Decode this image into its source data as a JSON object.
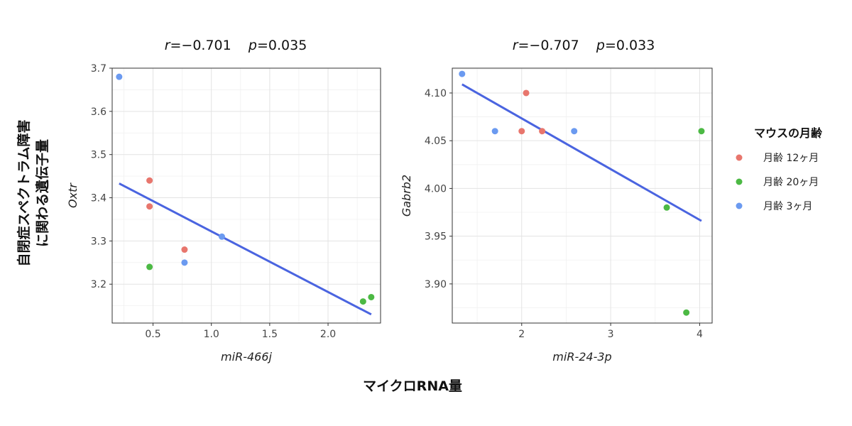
{
  "figure": {
    "y_label_lines": [
      "自閉症スペクトラム障害",
      "に関わる遺伝子量"
    ],
    "x_label": "マイクロRNA量"
  },
  "legend": {
    "title": "マウスの月齢",
    "entries": [
      {
        "label": "月齢 12ヶ月",
        "color": "#e8766d"
      },
      {
        "label": "月齢 20ヶ月",
        "color": "#4cb944"
      },
      {
        "label": "月齢 3ヶ月",
        "color": "#6b9af0"
      }
    ]
  },
  "chart_data": [
    {
      "type": "scatter",
      "stats": {
        "r_label": "r",
        "r_value": "=−0.701",
        "p_label": "p",
        "p_value": "=0.035"
      },
      "xlabel": "miR-466j",
      "ylabel": "Oxtr",
      "xlim": [
        0.15,
        2.45
      ],
      "ylim": [
        3.11,
        3.7
      ],
      "xticks": [
        0.5,
        1.0,
        1.5,
        2.0
      ],
      "xtick_labels": [
        "0.5",
        "1.0",
        "1.5",
        "2.0"
      ],
      "yticks": [
        3.2,
        3.3,
        3.4,
        3.5,
        3.6,
        3.7
      ],
      "ytick_labels": [
        "3.2",
        "3.3",
        "3.4",
        "3.5",
        "3.6",
        "3.7"
      ],
      "grid": true,
      "series": [
        {
          "name": "月齢 12ヶ月",
          "color": "#e8766d",
          "points": [
            [
              0.47,
              3.44
            ],
            [
              0.47,
              3.38
            ],
            [
              0.77,
              3.28
            ]
          ]
        },
        {
          "name": "月齢 20ヶ月",
          "color": "#4cb944",
          "points": [
            [
              0.47,
              3.24
            ],
            [
              2.3,
              3.16
            ],
            [
              2.37,
              3.17
            ]
          ]
        },
        {
          "name": "月齢 3ヶ月",
          "color": "#6b9af0",
          "points": [
            [
              0.21,
              3.68
            ],
            [
              0.77,
              3.25
            ],
            [
              1.09,
              3.31
            ]
          ]
        }
      ],
      "fit_line": {
        "color": "#4a64e0",
        "x": [
          0.21,
          2.37
        ],
        "y": [
          3.433,
          3.13
        ]
      }
    },
    {
      "type": "scatter",
      "stats": {
        "r_label": "r",
        "r_value": "=−0.707",
        "p_label": "p",
        "p_value": "=0.033"
      },
      "xlabel": "miR-24-3p",
      "ylabel": "Gabrb2",
      "xlim": [
        1.22,
        4.14
      ],
      "ylim": [
        3.859,
        4.126
      ],
      "xticks": [
        2,
        3,
        4
      ],
      "xtick_labels": [
        "2",
        "3",
        "4"
      ],
      "yticks": [
        3.9,
        3.95,
        4.0,
        4.05,
        4.1
      ],
      "ytick_labels": [
        "3.90",
        "3.95",
        "4.00",
        "4.05",
        "4.10"
      ],
      "grid": true,
      "series": [
        {
          "name": "月齢 12ヶ月",
          "color": "#e8766d",
          "points": [
            [
              2.0,
              4.06
            ],
            [
              2.05,
              4.1
            ],
            [
              2.23,
              4.06
            ]
          ]
        },
        {
          "name": "月齢 20ヶ月",
          "color": "#4cb944",
          "points": [
            [
              3.63,
              3.98
            ],
            [
              3.85,
              3.87
            ],
            [
              4.02,
              4.06
            ]
          ]
        },
        {
          "name": "月齢 3ヶ月",
          "color": "#6b9af0",
          "points": [
            [
              1.33,
              4.12
            ],
            [
              1.7,
              4.06
            ],
            [
              2.59,
              4.06
            ]
          ]
        }
      ],
      "fit_line": {
        "color": "#4a64e0",
        "x": [
          1.33,
          4.02
        ],
        "y": [
          4.109,
          3.966
        ]
      }
    }
  ]
}
